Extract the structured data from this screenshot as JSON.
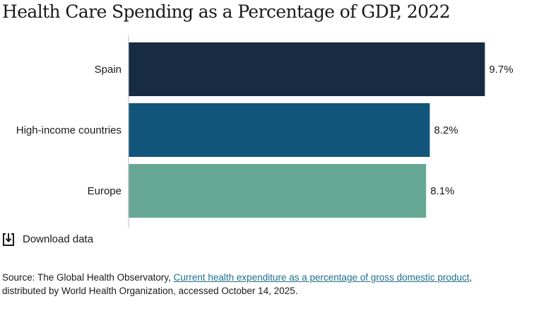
{
  "chart_data": {
    "type": "bar",
    "orientation": "horizontal",
    "title": "Health Care Spending as a Percentage of GDP, 2022",
    "categories": [
      "Spain",
      "High-income countries",
      "Europe"
    ],
    "values": [
      9.7,
      8.2,
      8.1
    ],
    "value_labels": [
      "9.7%",
      "8.2%",
      "8.1%"
    ],
    "colors": [
      "#172b42",
      "#12557a",
      "#67a894"
    ],
    "xlim": [
      0,
      10
    ],
    "axis_color": "#bbbbbb",
    "grid": false
  },
  "download": {
    "label": "Download data",
    "icon": "download-icon"
  },
  "source": {
    "prefix": "Source: The Global Health Observatory, ",
    "link_text": "Current health expenditure as a percentage of gross domestic product",
    "suffix": ",",
    "line2": "distributed by World Health Organization, accessed October 14, 2025."
  }
}
